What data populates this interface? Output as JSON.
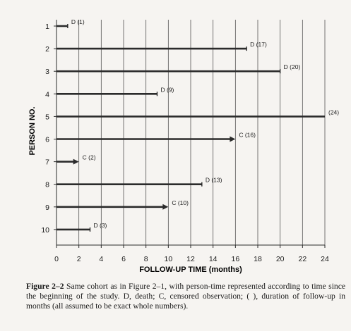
{
  "chart_data": {
    "type": "bar",
    "orientation": "horizontal",
    "xlabel": "FOLLOW-UP TIME (months)",
    "ylabel": "PERSON NO.",
    "xlim": [
      0,
      24
    ],
    "xticks": [
      0,
      2,
      4,
      6,
      8,
      10,
      12,
      14,
      16,
      18,
      20,
      22,
      24
    ],
    "grid": "vertical",
    "persons": [
      {
        "id": "1",
        "duration": 1,
        "outcome": "death",
        "label": "D (1)"
      },
      {
        "id": "2",
        "duration": 17,
        "outcome": "death",
        "label": "D (17)"
      },
      {
        "id": "3",
        "duration": 20,
        "outcome": "death",
        "label": "D (20)"
      },
      {
        "id": "4",
        "duration": 9,
        "outcome": "death",
        "label": "D (9)"
      },
      {
        "id": "5",
        "duration": 24,
        "outcome": "none",
        "label": "(24)"
      },
      {
        "id": "6",
        "duration": 16,
        "outcome": "censored",
        "label": "C (16)"
      },
      {
        "id": "7",
        "duration": 2,
        "outcome": "censored",
        "label": "C (2)"
      },
      {
        "id": "8",
        "duration": 13,
        "outcome": "death",
        "label": "D (13)"
      },
      {
        "id": "9",
        "duration": 10,
        "outcome": "censored",
        "label": "C (10)"
      },
      {
        "id": "10",
        "duration": 3,
        "outcome": "death",
        "label": "D (3)"
      }
    ]
  },
  "caption": {
    "label": "Figure 2–2",
    "text": " Same cohort as in Figure 2–1, with person-time represented according to time since the beginning of the study. D, death; C, censored observation; ( ), duration of follow-up in months (all assumed to be exact whole numbers)."
  },
  "colors": {
    "line": "#2b2b2b",
    "grid": "#555555",
    "background": "#f6f4f1"
  }
}
